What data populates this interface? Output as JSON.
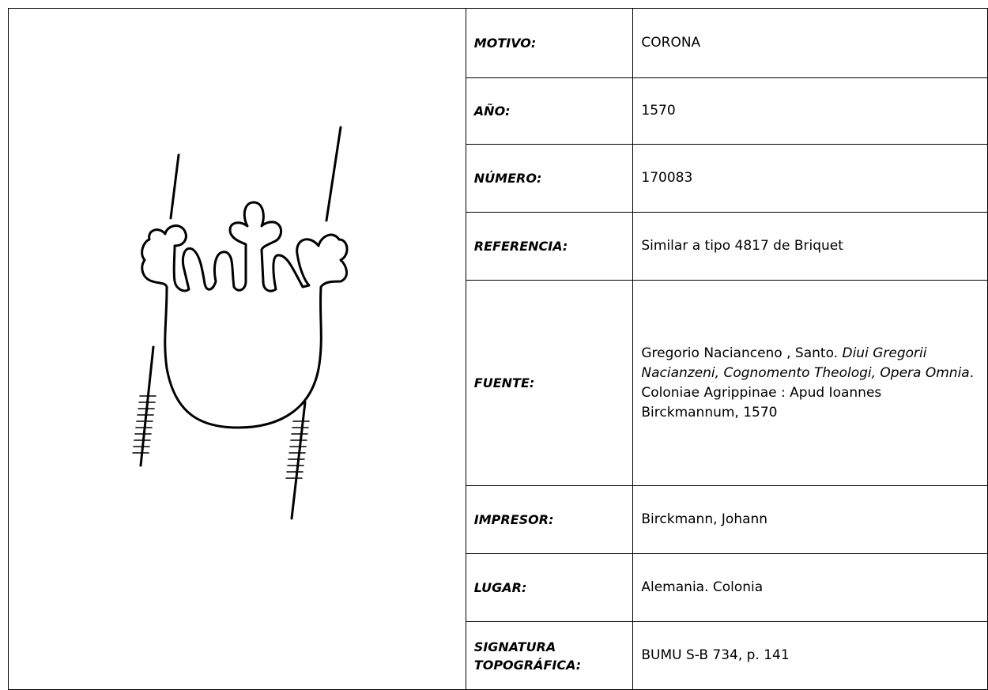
{
  "table": {
    "rows": [
      {
        "label": "MOTIVO:",
        "value": "CORONA"
      },
      {
        "label": "AÑO:",
        "value": "1570"
      },
      {
        "label": "NÚMERO:",
        "value": "170083"
      },
      {
        "label": "REFERENCIA:",
        "value": "Similar a tipo 4817 de Briquet"
      },
      {
        "label": "FUENTE:",
        "value": [
          {
            "text": "Gregorio Nacianceno , Santo. ",
            "italic": false
          },
          {
            "text": "Diui Gregorii Nacianzeni, Cognomento Theologi, Opera Omnia",
            "italic": true
          },
          {
            "text": ". Coloniae Agrippinae : Apud Ioannes Birckmannum, 1570",
            "italic": false
          }
        ]
      },
      {
        "label": "IMPRESOR:",
        "value": "Birckmann, Johann"
      },
      {
        "label": "LUGAR:",
        "value": "Alemania. Colonia"
      },
      {
        "label": "SIGNATURA TOPOGRÁFICA:",
        "value": "BUMU S-B 734, p. 141"
      }
    ]
  }
}
